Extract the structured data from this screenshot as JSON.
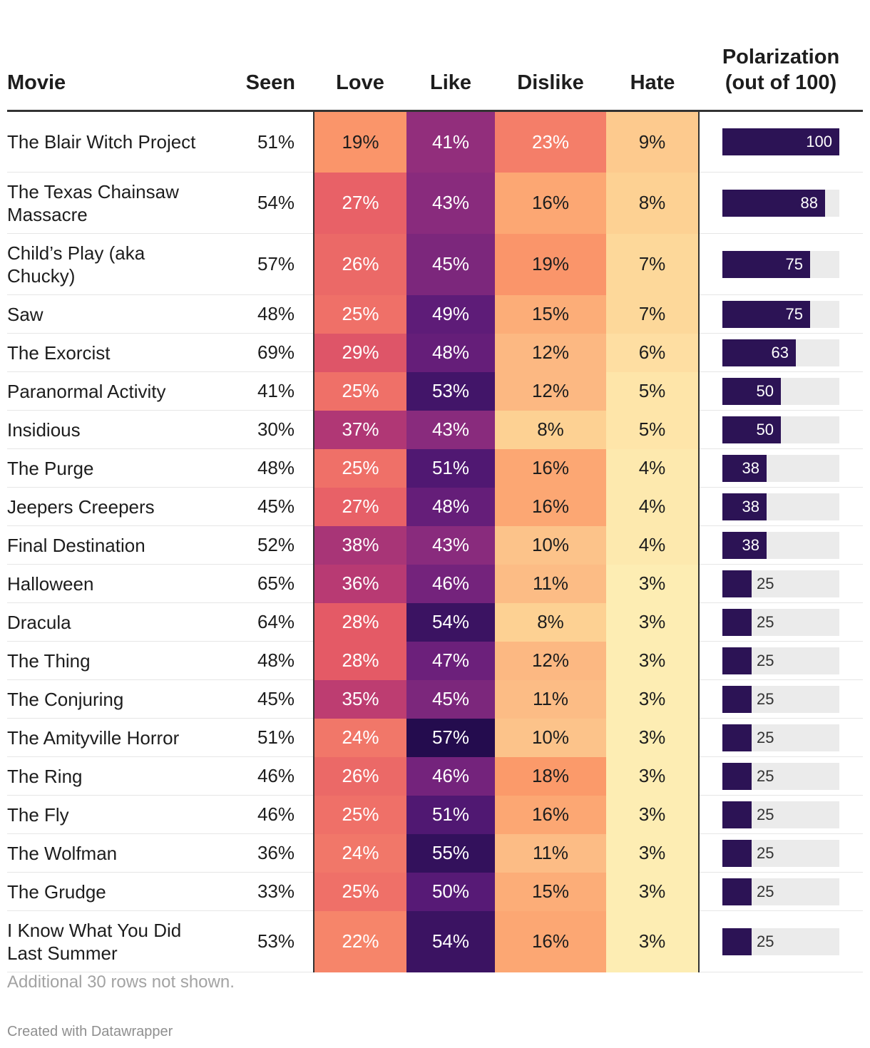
{
  "chart_data": {
    "type": "table",
    "columns": [
      "Movie",
      "Seen",
      "Love",
      "Like",
      "Dislike",
      "Hate",
      "Polarization\n(out of 100)"
    ],
    "rows": [
      {
        "movie": "The Blair Witch Project",
        "seen": "51%",
        "love": "19%",
        "like": "41%",
        "dislike": "23%",
        "hate": "9%",
        "polarization": 100
      },
      {
        "movie": "The Texas Chainsaw Massacre",
        "seen": "54%",
        "love": "27%",
        "like": "43%",
        "dislike": "16%",
        "hate": "8%",
        "polarization": 88
      },
      {
        "movie": "Child’s Play (aka Chucky)",
        "seen": "57%",
        "love": "26%",
        "like": "45%",
        "dislike": "19%",
        "hate": "7%",
        "polarization": 75
      },
      {
        "movie": "Saw",
        "seen": "48%",
        "love": "25%",
        "like": "49%",
        "dislike": "15%",
        "hate": "7%",
        "polarization": 75
      },
      {
        "movie": "The Exorcist",
        "seen": "69%",
        "love": "29%",
        "like": "48%",
        "dislike": "12%",
        "hate": "6%",
        "polarization": 63
      },
      {
        "movie": "Paranormal Activity",
        "seen": "41%",
        "love": "25%",
        "like": "53%",
        "dislike": "12%",
        "hate": "5%",
        "polarization": 50
      },
      {
        "movie": "Insidious",
        "seen": "30%",
        "love": "37%",
        "like": "43%",
        "dislike": "8%",
        "hate": "5%",
        "polarization": 50
      },
      {
        "movie": "The Purge",
        "seen": "48%",
        "love": "25%",
        "like": "51%",
        "dislike": "16%",
        "hate": "4%",
        "polarization": 38
      },
      {
        "movie": "Jeepers Creepers",
        "seen": "45%",
        "love": "27%",
        "like": "48%",
        "dislike": "16%",
        "hate": "4%",
        "polarization": 38
      },
      {
        "movie": "Final Destination",
        "seen": "52%",
        "love": "38%",
        "like": "43%",
        "dislike": "10%",
        "hate": "4%",
        "polarization": 38
      },
      {
        "movie": "Halloween",
        "seen": "65%",
        "love": "36%",
        "like": "46%",
        "dislike": "11%",
        "hate": "3%",
        "polarization": 25
      },
      {
        "movie": "Dracula",
        "seen": "64%",
        "love": "28%",
        "like": "54%",
        "dislike": "8%",
        "hate": "3%",
        "polarization": 25
      },
      {
        "movie": "The Thing",
        "seen": "48%",
        "love": "28%",
        "like": "47%",
        "dislike": "12%",
        "hate": "3%",
        "polarization": 25
      },
      {
        "movie": "The Conjuring",
        "seen": "45%",
        "love": "35%",
        "like": "45%",
        "dislike": "11%",
        "hate": "3%",
        "polarization": 25
      },
      {
        "movie": "The Amityville Horror",
        "seen": "51%",
        "love": "24%",
        "like": "57%",
        "dislike": "10%",
        "hate": "3%",
        "polarization": 25
      },
      {
        "movie": "The Ring",
        "seen": "46%",
        "love": "26%",
        "like": "46%",
        "dislike": "18%",
        "hate": "3%",
        "polarization": 25
      },
      {
        "movie": "The Fly",
        "seen": "46%",
        "love": "25%",
        "like": "51%",
        "dislike": "16%",
        "hate": "3%",
        "polarization": 25
      },
      {
        "movie": "The Wolfman",
        "seen": "36%",
        "love": "24%",
        "like": "55%",
        "dislike": "11%",
        "hate": "3%",
        "polarization": 25
      },
      {
        "movie": "The Grudge",
        "seen": "33%",
        "love": "25%",
        "like": "50%",
        "dislike": "15%",
        "hate": "3%",
        "polarization": 25
      },
      {
        "movie": "I Know What You Did Last Summer",
        "seen": "53%",
        "love": "22%",
        "like": "54%",
        "dislike": "16%",
        "hate": "3%",
        "polarization": 25
      }
    ],
    "polarization_max": 100,
    "bar_color": "#2c1355",
    "track_color": "#ebebeb"
  },
  "footer": {
    "note": "Additional 30 rows not shown.",
    "credit": "Created with Datawrapper"
  }
}
